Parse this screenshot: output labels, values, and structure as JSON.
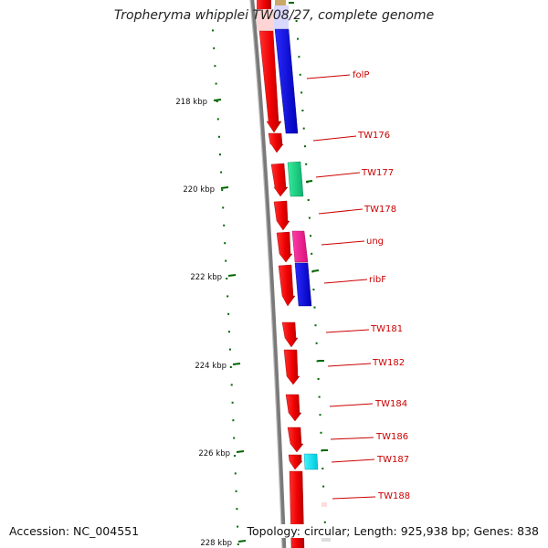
{
  "title": "Tropheryma whipplei TW08/27, complete genome",
  "footer": {
    "accession": "Accession: NC_004551",
    "summary": "Topology: circular; Length: 925,938 bp; Genes: 838"
  },
  "colors": {
    "backbone": "#888888",
    "tick": "#006600",
    "label": "#cc0000",
    "forward_gene": "#ff0000",
    "blue_gene": "#0000ee",
    "teal_gene": "#11dd88",
    "pink_gene": "#ff1493",
    "cyan_gene": "#00eeff"
  },
  "scale_labels": [
    {
      "kbp": 218,
      "text": "218 kbp"
    },
    {
      "kbp": 220,
      "text": "220 kbp"
    },
    {
      "kbp": 222,
      "text": "222 kbp"
    },
    {
      "kbp": 224,
      "text": "224 kbp"
    },
    {
      "kbp": 226,
      "text": "226 kbp"
    },
    {
      "kbp": 228,
      "text": "228 kbp"
    }
  ],
  "gene_labels": [
    {
      "name": "folP"
    },
    {
      "name": "TW176"
    },
    {
      "name": "TW177"
    },
    {
      "name": "TW178"
    },
    {
      "name": "ung"
    },
    {
      "name": "ribF"
    },
    {
      "name": "TW181"
    },
    {
      "name": "TW182"
    },
    {
      "name": "TW184"
    },
    {
      "name": "TW186"
    },
    {
      "name": "TW187"
    },
    {
      "name": "TW188"
    }
  ]
}
